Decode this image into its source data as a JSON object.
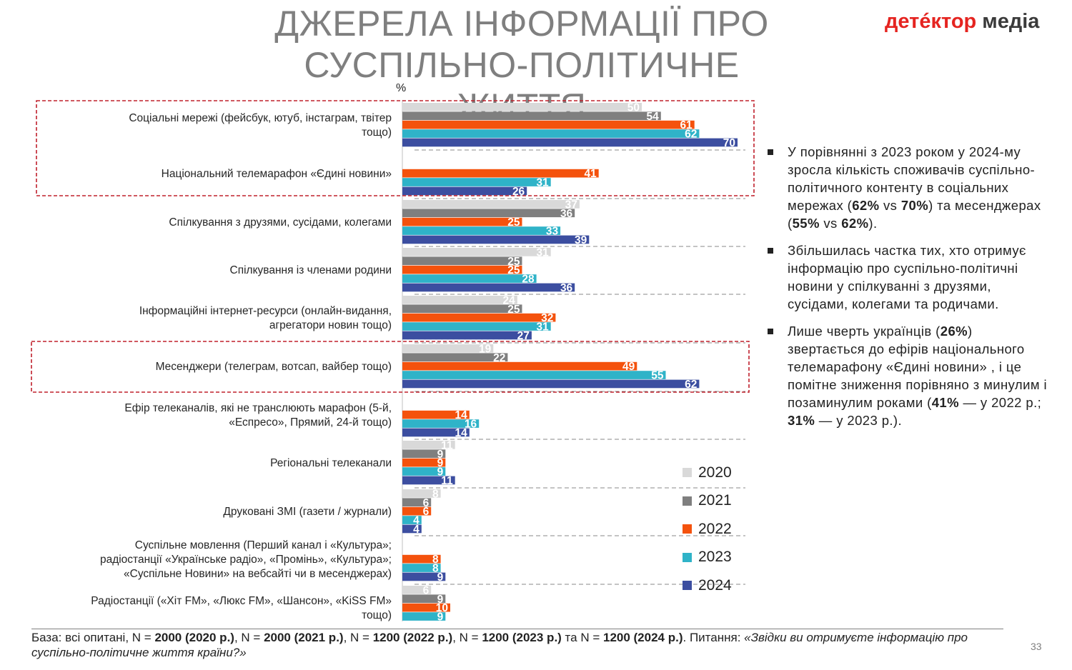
{
  "title": "ДЖЕРЕЛА ІНФОРМАЦІЇ ПРО СУСПІЛЬНО-ПОЛІТИЧНЕ ЖИТТЯ",
  "logo": {
    "part1": "детéктор",
    "part2": "медіа"
  },
  "unit": "%",
  "colors": {
    "2020": "#d9d9d9",
    "2021": "#7f7f7f",
    "2022": "#f4520d",
    "2023": "#2fb3c8",
    "2024": "#3c4ea0",
    "highlight": "#c0202c"
  },
  "chart_data": {
    "type": "bar",
    "orientation": "horizontal",
    "series": [
      {
        "name": "2020",
        "values": [
          50,
          null,
          37,
          31,
          24,
          19,
          null,
          11,
          8,
          null,
          6
        ]
      },
      {
        "name": "2021",
        "values": [
          54,
          null,
          36,
          25,
          25,
          22,
          null,
          9,
          6,
          null,
          9
        ]
      },
      {
        "name": "2022",
        "values": [
          61,
          41,
          25,
          25,
          32,
          49,
          14,
          9,
          6,
          8,
          10
        ]
      },
      {
        "name": "2023",
        "values": [
          62,
          31,
          33,
          28,
          31,
          55,
          16,
          9,
          4,
          8,
          9
        ]
      },
      {
        "name": "2024",
        "values": [
          70,
          26,
          39,
          36,
          27,
          62,
          14,
          11,
          4,
          9,
          null
        ]
      }
    ],
    "categories": [
      [
        "Соціальні мережі (фейсбук, ютуб, інстаграм, твітер",
        "тощо)"
      ],
      [
        "Національний телемарафон «Єдині новини»"
      ],
      [
        "Спілкування з друзями, сусідами, колегами"
      ],
      [
        "Спілкування із членами родини"
      ],
      [
        "Інформаційні інтернет-ресурси (онлайн-видання,",
        "агрегатори новин тощо)"
      ],
      [
        "Месенджери (телеграм, вотсап, вайбер тощо)"
      ],
      [
        "Ефір телеканалів, які не транслюють марафон (5-й,",
        "«Еспресо», Прямий, 24-й тощо)"
      ],
      [
        "Регіональні телеканали"
      ],
      [
        "Друковані ЗМІ (газети / журнали)"
      ],
      [
        "Суспільне мовлення (Перший канал і «Культура»;",
        "радіостанції «Українське радіо», «Промінь», «Культура»;",
        "«Суспільне Новини» на вебсайті чи в месенджерах)"
      ],
      [
        "Радіостанції («Хіт FM», «Люкс FM», «Шансон», «KiSS FM»",
        "тощо)"
      ]
    ],
    "legend": [
      "2020",
      "2021",
      "2022",
      "2023",
      "2024"
    ],
    "legend_position": "bottom-right",
    "highlighted_categories": [
      0,
      1,
      5
    ]
  },
  "notes": [
    [
      {
        "t": "У порівнянні з 2023 роком у 2024-му зросла кількість споживачів суспільно-політичного контенту в соціальних мережах ("
      },
      {
        "t": "62%",
        "b": true
      },
      {
        "t": " vs "
      },
      {
        "t": "70%",
        "b": true
      },
      {
        "t": ") та месенджерах ("
      },
      {
        "t": "55%",
        "b": true
      },
      {
        "t": " vs "
      },
      {
        "t": "62%",
        "b": true
      },
      {
        "t": ")."
      }
    ],
    [
      {
        "t": "Збільшилась частка тих, хто отримує інформацію про суспільно-політичні новини у спілкуванні з друзями, сусідами, колегами та родичами."
      }
    ],
    [
      {
        "t": "Лише чверть українців ("
      },
      {
        "t": "26%",
        "b": true
      },
      {
        "t": ") звертається до ефірів національного телемарафону «Єдині новини» , і це помітне зниження порівняно з минулим і позаминулим роками ("
      },
      {
        "t": "41%",
        "b": true
      },
      {
        "t": " — у 2022 р.; "
      },
      {
        "t": "31%",
        "b": true
      },
      {
        "t": " — у 2023 р.)."
      }
    ]
  ],
  "footnote": [
    {
      "t": "База: всі опитані, N = "
    },
    {
      "t": "2000 (2020 р.)",
      "b": true
    },
    {
      "t": ", N = "
    },
    {
      "t": "2000 (2021 р.)",
      "b": true
    },
    {
      "t": ", N = "
    },
    {
      "t": "1200 (2022 р.)",
      "b": true
    },
    {
      "t": ", N = "
    },
    {
      "t": "1200 (2023 р.)",
      "b": true
    },
    {
      "t": " та N = "
    },
    {
      "t": "1200 (2024 р.)",
      "b": true
    },
    {
      "t": ". Питання: "
    },
    {
      "t": "«Звідки ви отримуєте інформацію про суспільно-політичне життя країни?»",
      "i": true
    }
  ],
  "page_number": "33"
}
